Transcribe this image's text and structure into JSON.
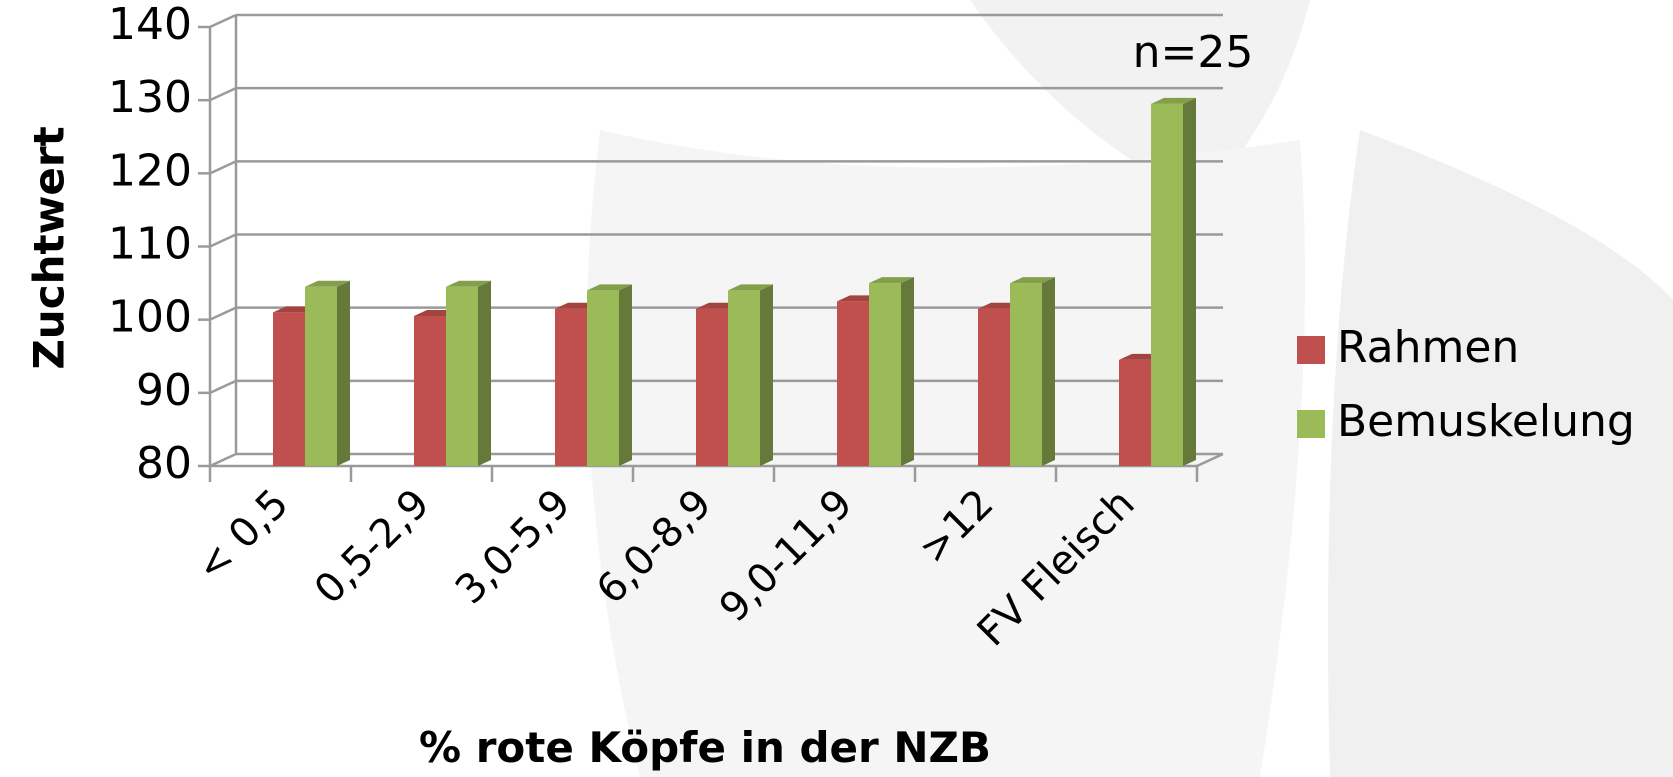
{
  "chart_data": {
    "type": "bar3d",
    "xlabel": "% rote Köpfe in der NZB",
    "ylabel": "Zuchtwert",
    "annotation": "n=25",
    "categories": [
      "< 0,5",
      "0,5-2,9",
      "3,0-5,9",
      "6,0-8,9",
      "9,0-11,9",
      ">12",
      "FV Fleisch"
    ],
    "series": [
      {
        "name": "Rahmen",
        "color": "#c0504d",
        "values": [
          101,
          100.5,
          101.5,
          101.5,
          102.5,
          101.5,
          94.5
        ]
      },
      {
        "name": "Bemuskelung",
        "color": "#9bbb59",
        "values": [
          104.5,
          104.5,
          104,
          104,
          105,
          105,
          129.5
        ]
      }
    ],
    "ylim": [
      80,
      140
    ],
    "yticks": [
      80,
      90,
      100,
      110,
      120,
      130,
      140
    ],
    "grid": true,
    "legend": "right"
  }
}
